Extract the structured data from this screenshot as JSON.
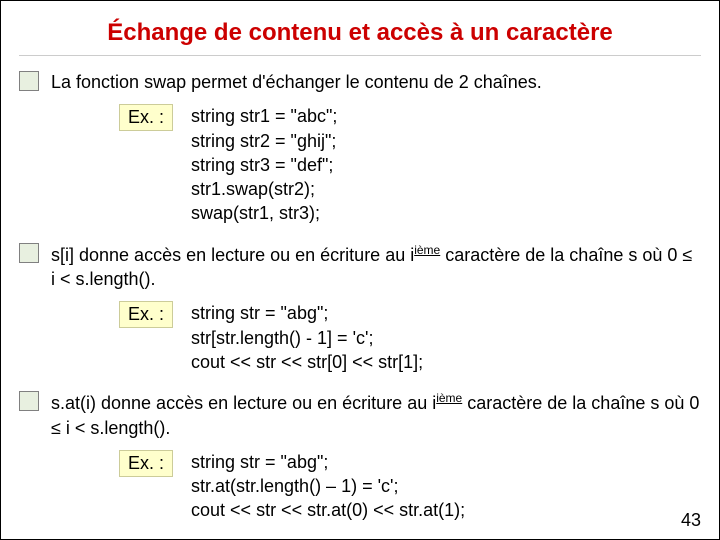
{
  "title": "Échange de contenu et accès à un caractère",
  "sections": [
    {
      "text_pre": "La fonction swap permet d'échanger le contenu de 2 chaînes.",
      "ex_label": "Ex. :",
      "code": "string str1 = \"abc\";\nstring str2 = \"ghij\";\nstring str3 = \"def\";\nstr1.swap(str2);\nswap(str1, str3);"
    },
    {
      "text_pre": "s[i] donne accès en lecture ou en écriture au i",
      "sup": "ième",
      "text_post": " caractère de la chaîne s où 0 ≤ i < s.length().",
      "ex_label": "Ex. :",
      "code": "string str = \"abg\";\nstr[str.length() - 1] = 'c';\ncout << str << str[0] << str[1];"
    },
    {
      "text_pre": "s.at(i) donne accès en lecture ou en écriture au i",
      "sup": "ième",
      "text_post": " caractère de la chaîne s où 0 ≤ i < s.length().",
      "ex_label": "Ex. :",
      "code": "string str = \"abg\";\nstr.at(str.length() – 1) = 'c';\ncout << str << str.at(0) << str.at(1);"
    }
  ],
  "page_number": "43",
  "colors": {
    "title_color": "#cc0000",
    "bullet_bg": "#e8f0e0",
    "ex_bg": "#ffffcc",
    "text_color": "#000000"
  }
}
